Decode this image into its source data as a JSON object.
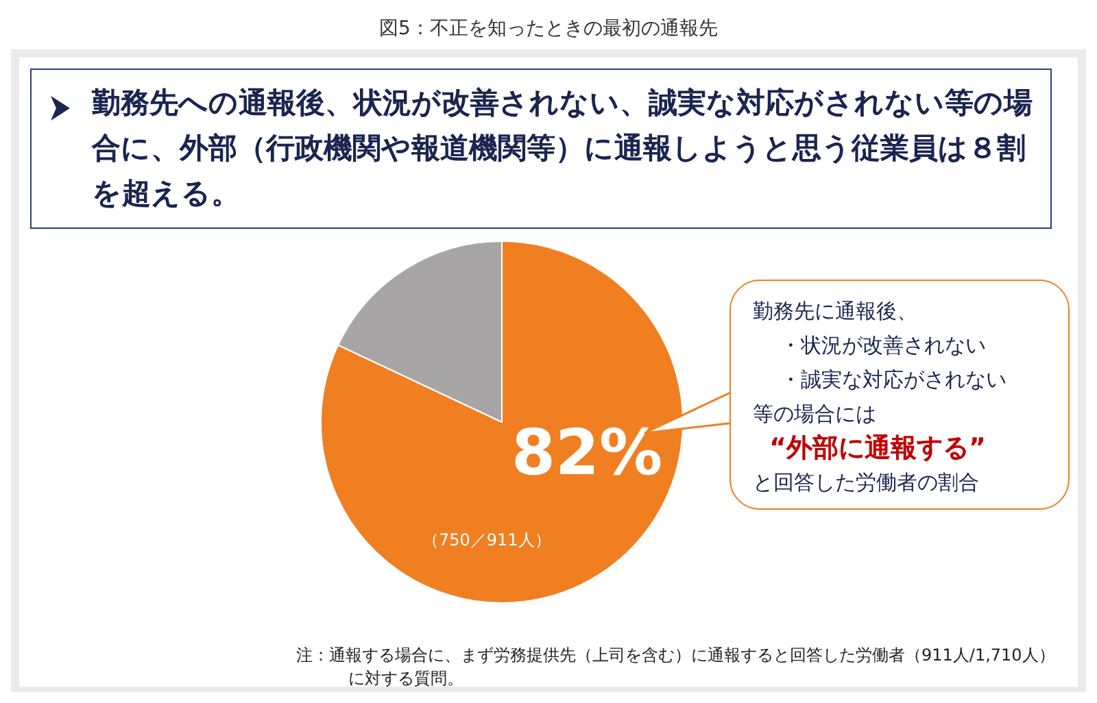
{
  "chart_data": {
    "type": "pie",
    "title": "図5：不正を知ったときの最初の通報先",
    "subtitle": "勤務先への通報後、状況が改善されない、誠実な対応がされない等の場合に、外部（行政機関や報道機関等）に通報しようと思う従業員は８割を超える。",
    "categories": [
      null,
      null
    ],
    "values": [
      82,
      18
    ],
    "colors": [
      "#f07f22",
      "#a8a5a6"
    ],
    "value_labels": [
      "82%",
      null
    ],
    "annotations": [
      "勤務先に通報後、",
      "・状況が改善されない",
      "・誠実な対応がされない",
      "等の場合には",
      "“外部に通報する”",
      "と回答した労働者の割合",
      "（750／911人）",
      "注：通報する場合に、まず労務提供先（上司を含む）に通報すると回答した労働者（911人/1,710人）に対する質問。"
    ]
  }
}
